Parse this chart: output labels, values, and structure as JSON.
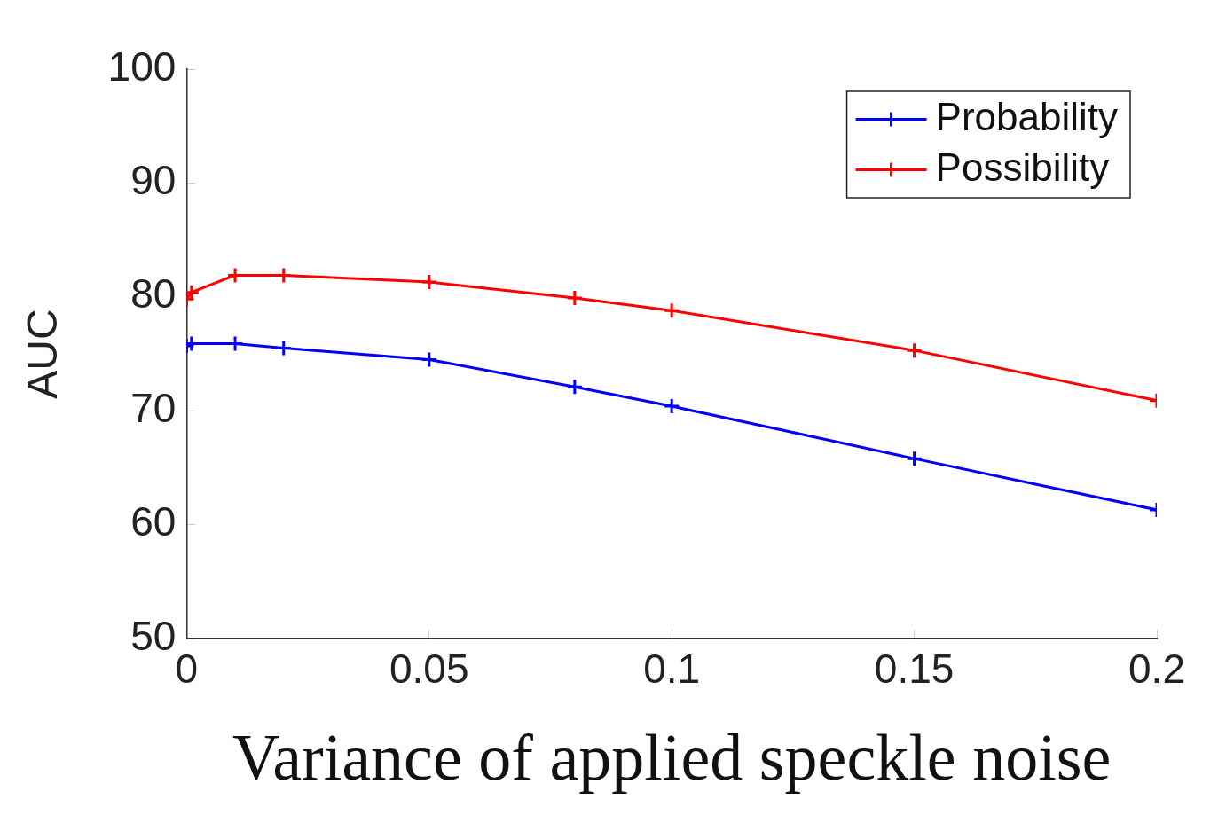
{
  "chart_data": {
    "type": "line",
    "xlabel": "Variance of applied speckle noise",
    "ylabel": "AUC",
    "x": [
      0,
      0.001,
      0.01,
      0.02,
      0.05,
      0.08,
      0.1,
      0.15,
      0.2
    ],
    "series": [
      {
        "name": "Probability",
        "color": "#0000ff",
        "values": [
          75.7,
          75.9,
          75.9,
          75.5,
          74.5,
          72.1,
          70.4,
          65.8,
          61.3
        ]
      },
      {
        "name": "Possibility",
        "color": "#ff0000",
        "values": [
          79.8,
          80.4,
          81.9,
          81.9,
          81.3,
          79.9,
          78.8,
          75.3,
          70.9
        ]
      }
    ],
    "xlim": [
      0,
      0.2
    ],
    "xticks": [
      0,
      0.05,
      0.1,
      0.15,
      0.2
    ],
    "ylim": [
      50,
      100
    ],
    "yticks": [
      50,
      60,
      70,
      80,
      90,
      100
    ],
    "grid": false,
    "legend": "top right",
    "marker": "cross",
    "line_style": "solid"
  }
}
